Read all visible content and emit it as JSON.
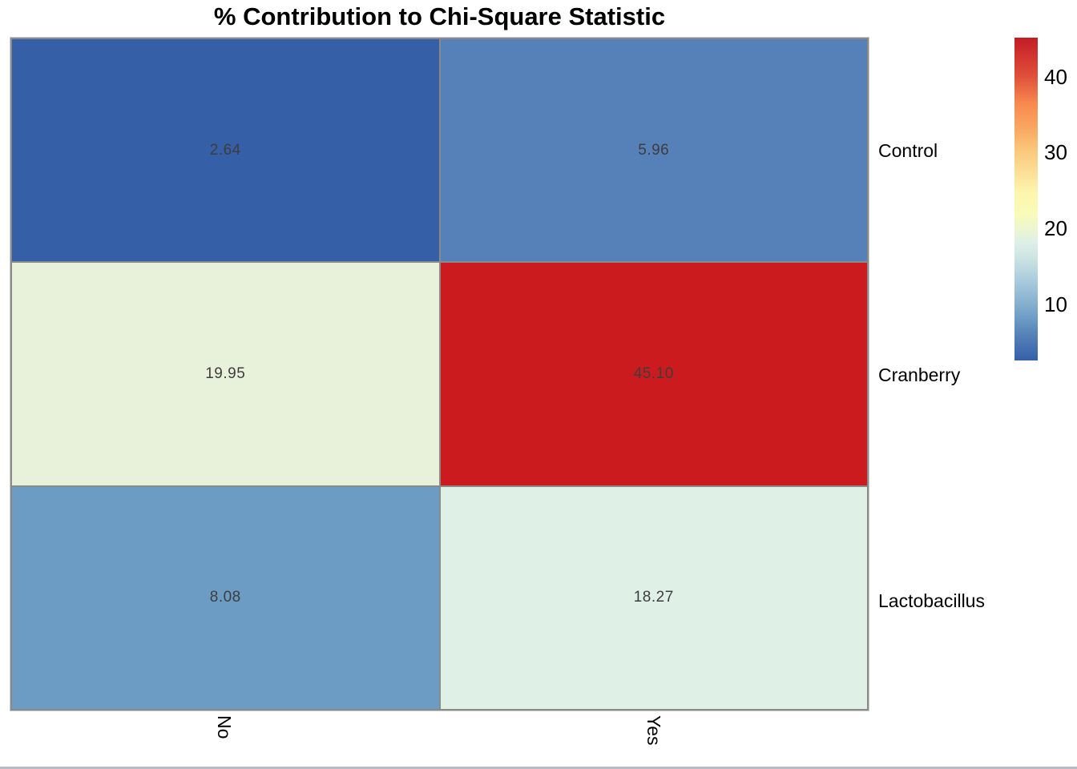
{
  "chart_data": {
    "type": "heatmap",
    "title": "% Contribution to Chi-Square Statistic",
    "rows": [
      "Control",
      "Cranberry",
      "Lactobacillus"
    ],
    "columns": [
      "No",
      "Yes"
    ],
    "values": [
      [
        2.64,
        5.96
      ],
      [
        19.95,
        45.1
      ],
      [
        8.08,
        18.27
      ]
    ],
    "cell_labels": [
      [
        "2.64",
        "5.96"
      ],
      [
        "19.95",
        "45.10"
      ],
      [
        "8.08",
        "18.27"
      ]
    ],
    "cell_colors": [
      [
        "#3560a8",
        "#5581b8"
      ],
      [
        "#e8f2db",
        "#cc1b1e"
      ],
      [
        "#6c9bc4",
        "#dff0e6"
      ]
    ],
    "value_text_color": "#3d3d3d",
    "border_color": "#8a8a8a",
    "legend_position": "right",
    "grid": false,
    "colorbar": {
      "min": 2.64,
      "max": 45.1,
      "ticks": [
        "40",
        "30",
        "20",
        "10"
      ],
      "colormap": "RdYlBu reversed (blue=low, red=high)",
      "gradient_stops": [
        {
          "pos": 0,
          "color": "#3560a8"
        },
        {
          "pos": 7.8,
          "color": "#5581b8"
        },
        {
          "pos": 12.8,
          "color": "#6c9bc4"
        },
        {
          "pos": 17.3,
          "color": "#84aece"
        },
        {
          "pos": 24.6,
          "color": "#a9cbdd"
        },
        {
          "pos": 32.2,
          "color": "#cfe5e4"
        },
        {
          "pos": 36.9,
          "color": "#dff0e6"
        },
        {
          "pos": 40.9,
          "color": "#ecf6cf"
        },
        {
          "pos": 45.6,
          "color": "#f9fbb7"
        },
        {
          "pos": 52,
          "color": "#fdf5ae"
        },
        {
          "pos": 64.4,
          "color": "#faca7e"
        },
        {
          "pos": 71.5,
          "color": "#f9a963"
        },
        {
          "pos": 79.3,
          "color": "#f88b50"
        },
        {
          "pos": 88,
          "color": "#e0503a"
        },
        {
          "pos": 100,
          "color": "#c41b25"
        }
      ]
    }
  }
}
